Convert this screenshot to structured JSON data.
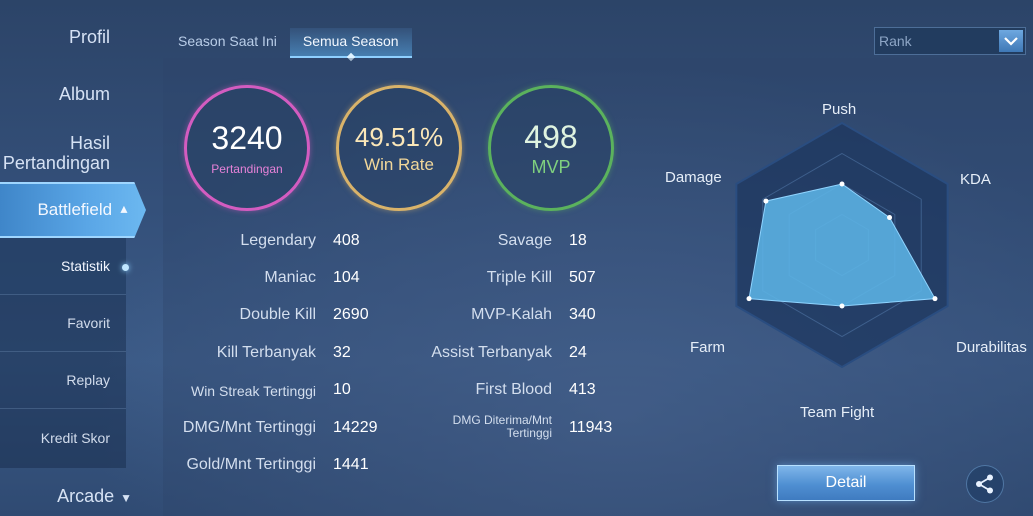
{
  "sidebar": {
    "profil": "Profil",
    "album": "Album",
    "hasil_line1": "Hasil",
    "hasil_line2": "Pertandingan",
    "battlefield": "Battlefield",
    "sub_items": [
      "Statistik",
      "Favorit",
      "Replay",
      "Kredit Skor"
    ],
    "arcade": "Arcade"
  },
  "tabs": [
    "Season Saat Ini",
    "Semua Season"
  ],
  "rank_select": {
    "value": "Rank"
  },
  "circles": {
    "matches": {
      "value": "3240",
      "label": "Pertandingan",
      "color": "#d35cc0"
    },
    "winrate": {
      "value": "49.51%",
      "label": "Win Rate",
      "color": "#d9b36a"
    },
    "mvp": {
      "value": "498",
      "label": "MVP",
      "color": "#5bb25d"
    }
  },
  "stats_left": [
    {
      "label": "Legendary",
      "value": "408"
    },
    {
      "label": "Maniac",
      "value": "104"
    },
    {
      "label": "Double Kill",
      "value": "2690"
    },
    {
      "label": "Kill Terbanyak",
      "value": "32"
    },
    {
      "label": "Win Streak Tertinggi",
      "value": "10"
    },
    {
      "label": "DMG/Mnt Tertinggi",
      "value": "14229"
    },
    {
      "label": "Gold/Mnt Tertinggi",
      "value": "1441"
    }
  ],
  "stats_right": [
    {
      "label": "Savage",
      "value": "18"
    },
    {
      "label": "Triple Kill",
      "value": "507"
    },
    {
      "label": "MVP-Kalah",
      "value": "340"
    },
    {
      "label": "Assist Terbanyak",
      "value": "24"
    },
    {
      "label": "First Blood",
      "value": "413"
    },
    {
      "label_line1": "DMG Diterima/Mnt",
      "label_line2": "Tertinggi",
      "value": "11943"
    }
  ],
  "radar": {
    "axes": [
      "Push",
      "KDA",
      "Durabilitas",
      "Team Fight",
      "Farm",
      "Damage"
    ],
    "values": [
      0.5,
      0.45,
      0.88,
      0.5,
      0.88,
      0.72
    ],
    "fill_color": "#5cb4e6"
  },
  "detail_button": "Detail",
  "icons": {
    "share": "share-icon",
    "dropdown": "chevron-down-icon"
  }
}
